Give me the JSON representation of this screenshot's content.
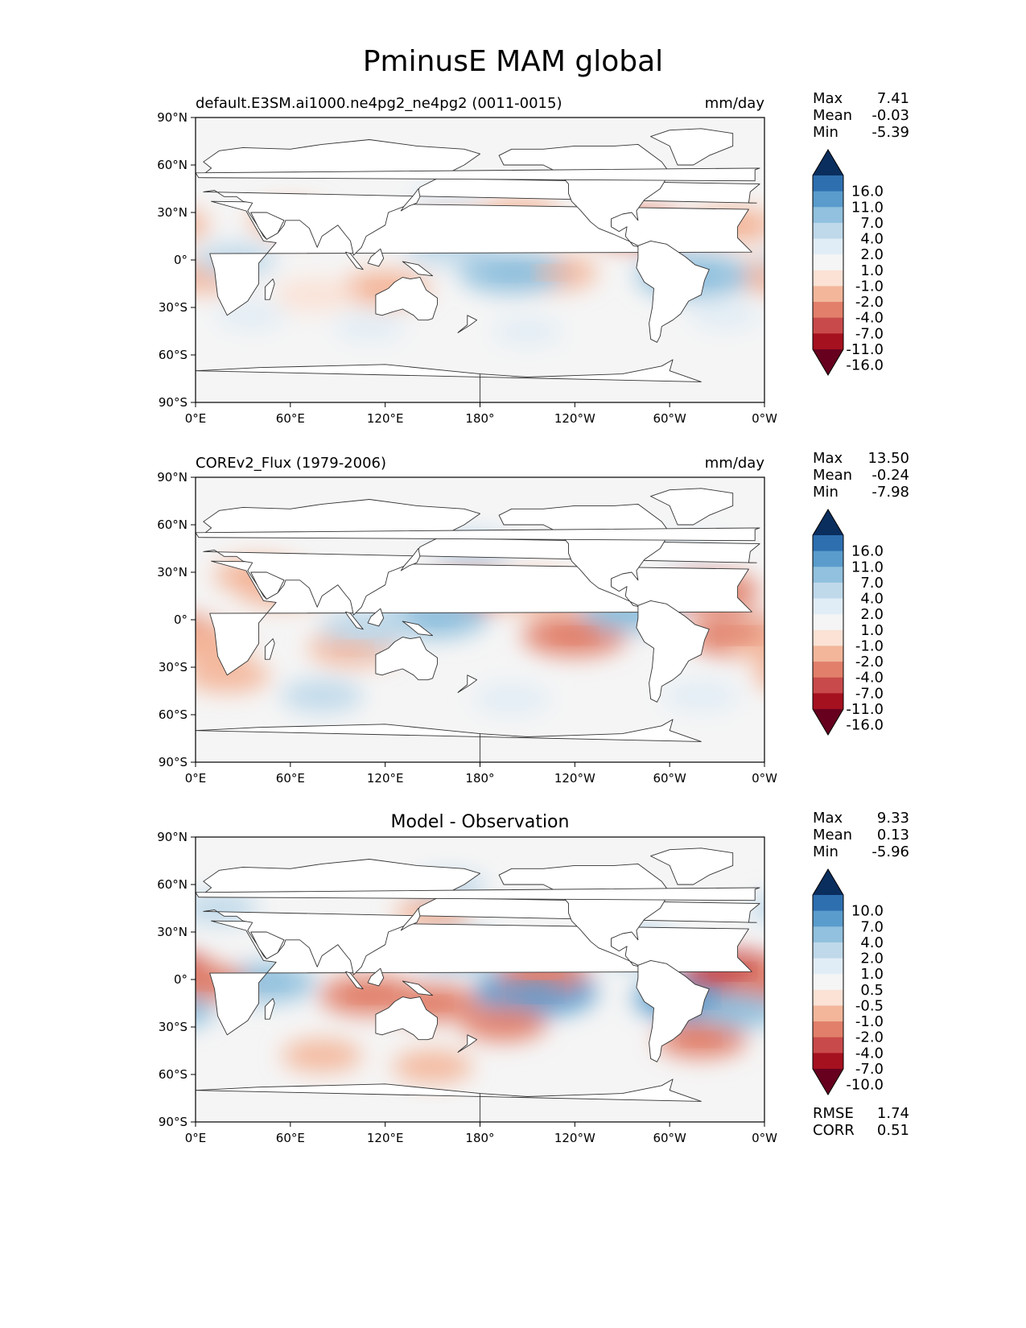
{
  "figure": {
    "title": "PminusE MAM global"
  },
  "colors": {
    "neg_ramp": [
      "#67001f",
      "#a5111f",
      "#c94a4a",
      "#e17f6a",
      "#f3b69b",
      "#fbe2d5"
    ],
    "neutral": "#f5f5f5",
    "pos_ramp": [
      "#e1edf6",
      "#bfd9ea",
      "#91c1de",
      "#5a9ccc",
      "#2e6fb0",
      "#0a2e5e"
    ],
    "land": "#ffffff",
    "coast": "#333333"
  },
  "chart_data": [
    {
      "type": "heatmap",
      "name": "test-panel",
      "left_title": "default.E3SM.ai1000.ne4pg2_ne4pg2 (0011-0015)",
      "center_title": "",
      "right_title": "mm/day",
      "x_ticks": [
        "0°E",
        "60°E",
        "120°E",
        "180°",
        "120°W",
        "60°W",
        "0°W"
      ],
      "y_ticks": [
        "90°N",
        "60°N",
        "30°N",
        "0°",
        "30°S",
        "60°S",
        "90°S"
      ],
      "xlim": [
        0,
        360
      ],
      "ylim": [
        -90,
        90
      ],
      "stats": [
        {
          "label": "Max",
          "value": "7.41"
        },
        {
          "label": "Mean",
          "value": "-0.03"
        },
        {
          "label": "Min",
          "value": "-5.39"
        }
      ],
      "footer_stats": [],
      "colorbar": {
        "levels": [
          "16.0",
          "11.0",
          "7.0",
          "4.0",
          "2.0",
          "1.0",
          "-1.0",
          "-2.0",
          "-4.0",
          "-7.0",
          "-11.0",
          "-16.0"
        ],
        "colors": [
          "#0a2e5e",
          "#2e6fb0",
          "#5a9ccc",
          "#91c1de",
          "#bfd9ea",
          "#e1edf6",
          "#f5f5f5",
          "#fbe2d5",
          "#f3b69b",
          "#e17f6a",
          "#c94a4a",
          "#a5111f",
          "#67001f"
        ]
      },
      "field": [
        {
          "lon": 280,
          "lat": 20,
          "value": -4.2
        },
        {
          "lon": 340,
          "lat": 22,
          "value": -3.0
        },
        {
          "lon": 165,
          "lat": 22,
          "value": -2.5
        },
        {
          "lon": 205,
          "lat": 28,
          "value": -2.4
        },
        {
          "lon": 225,
          "lat": -8,
          "value": -3.2
        },
        {
          "lon": 120,
          "lat": -18,
          "value": -3.0
        },
        {
          "lon": 75,
          "lat": -22,
          "value": -2.0
        },
        {
          "lon": 5,
          "lat": -10,
          "value": -2.6
        },
        {
          "lon": 60,
          "lat": 25,
          "value": -2.3
        },
        {
          "lon": 200,
          "lat": -8,
          "value": 4.5
        },
        {
          "lon": 160,
          "lat": 8,
          "value": 3.0
        },
        {
          "lon": 315,
          "lat": -10,
          "value": 5.5
        },
        {
          "lon": 25,
          "lat": 0,
          "value": 2.2
        },
        {
          "lon": 160,
          "lat": 40,
          "value": 1.4
        },
        {
          "lon": 110,
          "lat": -42,
          "value": 1.2
        },
        {
          "lon": 35,
          "lat": -35,
          "value": 1.1
        },
        {
          "lon": 210,
          "lat": -45,
          "value": 1.0
        },
        {
          "lon": 335,
          "lat": -35,
          "value": 1.1
        }
      ]
    },
    {
      "type": "heatmap",
      "name": "reference-panel",
      "left_title": "COREv2_Flux (1979-2006)",
      "center_title": "",
      "right_title": "mm/day",
      "x_ticks": [
        "0°E",
        "60°E",
        "120°E",
        "180°",
        "120°W",
        "60°W",
        "0°W"
      ],
      "y_ticks": [
        "90°N",
        "60°N",
        "30°N",
        "0°",
        "30°S",
        "60°S",
        "90°S"
      ],
      "xlim": [
        0,
        360
      ],
      "ylim": [
        -90,
        90
      ],
      "stats": [
        {
          "label": "Max",
          "value": "13.50"
        },
        {
          "label": "Mean",
          "value": "-0.24"
        },
        {
          "label": "Min",
          "value": "-7.98"
        }
      ],
      "footer_stats": [],
      "colorbar": {
        "levels": [
          "16.0",
          "11.0",
          "7.0",
          "4.0",
          "2.0",
          "1.0",
          "-1.0",
          "-2.0",
          "-4.0",
          "-7.0",
          "-11.0",
          "-16.0"
        ],
        "colors": [
          "#0a2e5e",
          "#2e6fb0",
          "#5a9ccc",
          "#91c1de",
          "#bfd9ea",
          "#e1edf6",
          "#f5f5f5",
          "#fbe2d5",
          "#f3b69b",
          "#e17f6a",
          "#c94a4a",
          "#a5111f",
          "#67001f"
        ]
      },
      "field": [
        {
          "lon": 175,
          "lat": 18,
          "value": -4.5
        },
        {
          "lon": 215,
          "lat": 17,
          "value": -3.8
        },
        {
          "lon": 325,
          "lat": 18,
          "value": -4.2
        },
        {
          "lon": 55,
          "lat": 20,
          "value": -3.5
        },
        {
          "lon": 40,
          "lat": 28,
          "value": -3.0
        },
        {
          "lon": 240,
          "lat": -10,
          "value": -4.5
        },
        {
          "lon": 345,
          "lat": -10,
          "value": -4.8
        },
        {
          "lon": 100,
          "lat": -18,
          "value": -3.0
        },
        {
          "lon": 5,
          "lat": -15,
          "value": -3.0
        },
        {
          "lon": 20,
          "lat": -35,
          "value": -2.5
        },
        {
          "lon": 150,
          "lat": 2,
          "value": 5.0
        },
        {
          "lon": 110,
          "lat": -5,
          "value": 3.8
        },
        {
          "lon": 275,
          "lat": 5,
          "value": 4.0
        },
        {
          "lon": 175,
          "lat": 45,
          "value": 2.0
        },
        {
          "lon": 80,
          "lat": -48,
          "value": 2.2
        },
        {
          "lon": 200,
          "lat": -50,
          "value": 1.8
        },
        {
          "lon": 320,
          "lat": -48,
          "value": 1.8
        },
        {
          "lon": 315,
          "lat": 45,
          "value": 1.6
        }
      ]
    },
    {
      "type": "heatmap",
      "name": "difference-panel",
      "left_title": "",
      "center_title": "Model - Observation",
      "right_title": "",
      "x_ticks": [
        "0°E",
        "60°E",
        "120°E",
        "180°",
        "120°W",
        "60°W",
        "0°W"
      ],
      "y_ticks": [
        "90°N",
        "60°N",
        "30°N",
        "0°",
        "30°S",
        "60°S",
        "90°S"
      ],
      "xlim": [
        0,
        360
      ],
      "ylim": [
        -90,
        90
      ],
      "stats": [
        {
          "label": "Max",
          "value": "9.33"
        },
        {
          "label": "Mean",
          "value": "0.13"
        },
        {
          "label": "Min",
          "value": "-5.96"
        }
      ],
      "footer_stats": [
        {
          "label": "RMSE",
          "value": "1.74"
        },
        {
          "label": "CORR",
          "value": "0.51"
        }
      ],
      "colorbar": {
        "levels": [
          "10.0",
          "7.0",
          "4.0",
          "2.0",
          "1.0",
          "0.5",
          "-0.5",
          "-1.0",
          "-2.0",
          "-4.0",
          "-7.0",
          "-10.0"
        ],
        "colors": [
          "#0a2e5e",
          "#2e6fb0",
          "#5a9ccc",
          "#91c1de",
          "#bfd9ea",
          "#e1edf6",
          "#f5f5f5",
          "#fbe2d5",
          "#f3b69b",
          "#e17f6a",
          "#c94a4a",
          "#a5111f",
          "#67001f"
        ]
      },
      "field": [
        {
          "lon": 215,
          "lat": -8,
          "value": 6.5
        },
        {
          "lon": 165,
          "lat": 18,
          "value": 3.5
        },
        {
          "lon": 315,
          "lat": -12,
          "value": 6.0
        },
        {
          "lon": 45,
          "lat": -2,
          "value": 3.8
        },
        {
          "lon": 280,
          "lat": 20,
          "value": 2.2
        },
        {
          "lon": 15,
          "lat": 45,
          "value": 1.8
        },
        {
          "lon": 160,
          "lat": 58,
          "value": 1.5
        },
        {
          "lon": 110,
          "lat": -10,
          "value": -4.0
        },
        {
          "lon": 150,
          "lat": -15,
          "value": -3.2
        },
        {
          "lon": 220,
          "lat": 5,
          "value": -3.0
        },
        {
          "lon": 340,
          "lat": 5,
          "value": -4.5
        },
        {
          "lon": 5,
          "lat": -2,
          "value": -3.0
        },
        {
          "lon": 195,
          "lat": -28,
          "value": -2.5
        },
        {
          "lon": 320,
          "lat": -38,
          "value": -3.0
        },
        {
          "lon": 80,
          "lat": -48,
          "value": -2.0
        },
        {
          "lon": 150,
          "lat": -55,
          "value": -2.0
        },
        {
          "lon": 150,
          "lat": 42,
          "value": -1.5
        },
        {
          "lon": 345,
          "lat": -20,
          "value": 2.5
        }
      ]
    }
  ]
}
